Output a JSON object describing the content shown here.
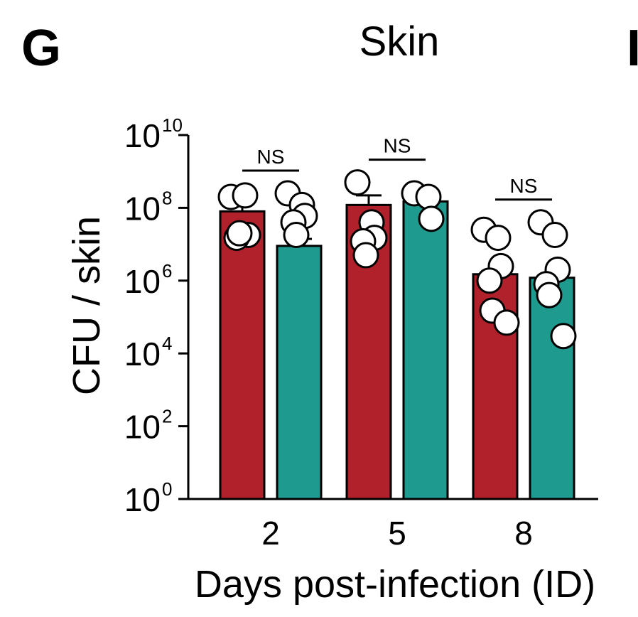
{
  "panel_letter": "G",
  "next_panel_letter": "I",
  "chart_data": {
    "type": "bar",
    "title": "Skin",
    "xlabel": "Days post-infection (ID)",
    "ylabel": "CFU / skin",
    "yscale": "log10",
    "ylim": [
      1,
      10000000000
    ],
    "yticks": [
      {
        "base": "10",
        "exp": "0",
        "value": 1
      },
      {
        "base": "10",
        "exp": "2",
        "value": 100
      },
      {
        "base": "10",
        "exp": "4",
        "value": 10000
      },
      {
        "base": "10",
        "exp": "6",
        "value": 1000000
      },
      {
        "base": "10",
        "exp": "8",
        "value": 100000000
      },
      {
        "base": "10",
        "exp": "10",
        "value": 10000000000
      }
    ],
    "categories": [
      "2",
      "5",
      "8"
    ],
    "series": [
      {
        "color": "#b0212c",
        "values": [
          80000000,
          120000000,
          1500000
        ],
        "error_upper": [
          140000000,
          220000000,
          1500000
        ],
        "points": [
          [
            200000000,
            220000000,
            18000000,
            15000000,
            20000000
          ],
          [
            500000000,
            40000000,
            15000000,
            12000000,
            5000000
          ],
          [
            25000000,
            15000000,
            2500000,
            1000000,
            150000,
            70000
          ]
        ]
      },
      {
        "color": "#1f9a8f",
        "values": [
          9000000,
          150000000,
          1200000
        ],
        "error_upper": [
          14000000,
          250000000,
          1500000
        ],
        "points": [
          [
            250000000,
            120000000,
            60000000,
            40000000,
            18000000
          ],
          [
            250000000,
            200000000,
            50000000
          ],
          [
            40000000,
            18000000,
            2000000,
            800000,
            400000,
            30000
          ]
        ]
      }
    ],
    "significance": [
      {
        "category": "2",
        "label": "NS"
      },
      {
        "category": "5",
        "label": "NS"
      },
      {
        "category": "8",
        "label": "NS"
      }
    ]
  }
}
